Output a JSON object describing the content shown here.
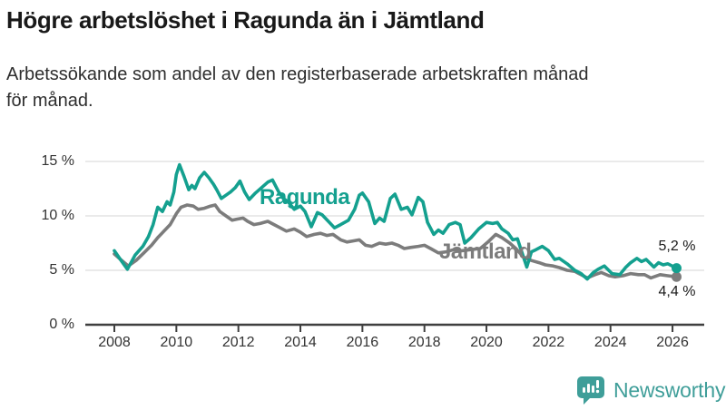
{
  "title": "Högre arbetslöshet i Ragunda än i Jämtland",
  "subtitle_lines": [
    "Arbetssökande som andel av den registerbaserade arbetskraften månad",
    "för månad."
  ],
  "colors": {
    "ragunda_teal": "#14a08f",
    "jamtland_gray": "#7c7c7c",
    "axis": "#3f3f3f",
    "gridline": "#e3e3e3",
    "tick_text": "#333333",
    "logo_teal": "#3f9e99"
  },
  "branding": {
    "logo_text": "Newsworthy"
  },
  "chart_data": {
    "type": "line",
    "title": "Högre arbetslöshet i Ragunda än i Jämtland",
    "subtitle": "Arbetssökande som andel av den registerbaserade arbetskraften månad för månad.",
    "unit": "%",
    "grid": "horizontal",
    "legend_position": "inline-labels",
    "xlim": [
      2007.9,
      2026.9
    ],
    "ylim": [
      0,
      15.5
    ],
    "x_ticks": [
      2008,
      2010,
      2012,
      2014,
      2016,
      2018,
      2020,
      2022,
      2024,
      2026
    ],
    "x_tick_labels": [
      "2008",
      "2010",
      "2012",
      "2014",
      "2016",
      "2018",
      "2020",
      "2022",
      "2024",
      "2026"
    ],
    "y_ticks": [
      {
        "value": 15,
        "label": "15 %"
      },
      {
        "value": 10,
        "label": "10 %"
      },
      {
        "value": 5,
        "label": "5 %"
      },
      {
        "value": 0,
        "label": "0 %"
      }
    ],
    "series": [
      {
        "name": "Ragunda",
        "color": "#14a08f",
        "end_label": "5,2 %",
        "end_value": 5.2,
        "points": [
          [
            2008.0,
            6.8
          ],
          [
            2008.17,
            6.1
          ],
          [
            2008.42,
            5.1
          ],
          [
            2008.67,
            6.4
          ],
          [
            2008.92,
            7.2
          ],
          [
            2009.1,
            8.1
          ],
          [
            2009.25,
            9.2
          ],
          [
            2009.4,
            10.8
          ],
          [
            2009.55,
            10.4
          ],
          [
            2009.7,
            11.3
          ],
          [
            2009.8,
            11.0
          ],
          [
            2009.92,
            12.2
          ],
          [
            2010.0,
            13.8
          ],
          [
            2010.1,
            14.7
          ],
          [
            2010.25,
            13.6
          ],
          [
            2010.4,
            12.4
          ],
          [
            2010.5,
            12.8
          ],
          [
            2010.6,
            12.5
          ],
          [
            2010.75,
            13.5
          ],
          [
            2010.9,
            14.0
          ],
          [
            2011.05,
            13.5
          ],
          [
            2011.2,
            12.9
          ],
          [
            2011.3,
            12.4
          ],
          [
            2011.45,
            11.6
          ],
          [
            2011.6,
            11.9
          ],
          [
            2011.75,
            12.2
          ],
          [
            2011.9,
            12.6
          ],
          [
            2012.05,
            13.2
          ],
          [
            2012.2,
            12.2
          ],
          [
            2012.35,
            11.5
          ],
          [
            2012.55,
            12.1
          ],
          [
            2012.75,
            12.6
          ],
          [
            2012.95,
            13.1
          ],
          [
            2013.1,
            13.3
          ],
          [
            2013.3,
            12.2
          ],
          [
            2013.45,
            11.6
          ],
          [
            2013.6,
            11.3
          ],
          [
            2013.8,
            10.6
          ],
          [
            2014.0,
            10.9
          ],
          [
            2014.15,
            10.4
          ],
          [
            2014.35,
            9.0
          ],
          [
            2014.55,
            10.3
          ],
          [
            2014.7,
            10.1
          ],
          [
            2014.9,
            9.5
          ],
          [
            2015.1,
            8.9
          ],
          [
            2015.3,
            9.2
          ],
          [
            2015.55,
            9.6
          ],
          [
            2015.75,
            10.6
          ],
          [
            2015.9,
            11.9
          ],
          [
            2016.0,
            12.1
          ],
          [
            2016.2,
            11.3
          ],
          [
            2016.4,
            9.3
          ],
          [
            2016.55,
            9.8
          ],
          [
            2016.7,
            9.5
          ],
          [
            2016.9,
            11.6
          ],
          [
            2017.05,
            12.0
          ],
          [
            2017.25,
            10.6
          ],
          [
            2017.45,
            10.8
          ],
          [
            2017.6,
            10.1
          ],
          [
            2017.8,
            11.7
          ],
          [
            2017.95,
            11.3
          ],
          [
            2018.1,
            9.4
          ],
          [
            2018.3,
            8.3
          ],
          [
            2018.45,
            8.7
          ],
          [
            2018.6,
            8.4
          ],
          [
            2018.8,
            9.2
          ],
          [
            2019.0,
            9.4
          ],
          [
            2019.15,
            9.2
          ],
          [
            2019.3,
            7.5
          ],
          [
            2019.5,
            8.0
          ],
          [
            2019.75,
            8.8
          ],
          [
            2020.0,
            9.4
          ],
          [
            2020.2,
            9.3
          ],
          [
            2020.35,
            9.4
          ],
          [
            2020.5,
            8.8
          ],
          [
            2020.7,
            8.4
          ],
          [
            2020.85,
            7.8
          ],
          [
            2021.0,
            7.9
          ],
          [
            2021.15,
            6.6
          ],
          [
            2021.3,
            5.3
          ],
          [
            2021.45,
            6.7
          ],
          [
            2021.6,
            6.9
          ],
          [
            2021.8,
            7.2
          ],
          [
            2022.0,
            6.8
          ],
          [
            2022.2,
            6.0
          ],
          [
            2022.35,
            6.1
          ],
          [
            2022.6,
            5.6
          ],
          [
            2022.85,
            5.0
          ],
          [
            2023.05,
            4.7
          ],
          [
            2023.25,
            4.2
          ],
          [
            2023.45,
            4.8
          ],
          [
            2023.6,
            5.1
          ],
          [
            2023.8,
            5.4
          ],
          [
            2024.05,
            4.7
          ],
          [
            2024.3,
            4.6
          ],
          [
            2024.5,
            5.3
          ],
          [
            2024.65,
            5.7
          ],
          [
            2024.85,
            6.1
          ],
          [
            2025.0,
            5.8
          ],
          [
            2025.15,
            6.0
          ],
          [
            2025.4,
            5.3
          ],
          [
            2025.55,
            5.7
          ],
          [
            2025.7,
            5.5
          ],
          [
            2025.85,
            5.6
          ],
          [
            2026.13,
            5.2
          ]
        ]
      },
      {
        "name": "Jämtland",
        "color": "#7c7c7c",
        "end_label": "4,4 %",
        "end_value": 4.4,
        "points": [
          [
            2008.0,
            6.5
          ],
          [
            2008.2,
            6.0
          ],
          [
            2008.45,
            5.4
          ],
          [
            2008.7,
            5.9
          ],
          [
            2008.95,
            6.6
          ],
          [
            2009.2,
            7.3
          ],
          [
            2009.4,
            8.0
          ],
          [
            2009.6,
            8.6
          ],
          [
            2009.8,
            9.2
          ],
          [
            2010.0,
            10.2
          ],
          [
            2010.15,
            10.8
          ],
          [
            2010.35,
            11.0
          ],
          [
            2010.55,
            10.9
          ],
          [
            2010.7,
            10.6
          ],
          [
            2010.9,
            10.7
          ],
          [
            2011.1,
            10.9
          ],
          [
            2011.25,
            11.0
          ],
          [
            2011.4,
            10.4
          ],
          [
            2011.6,
            10.0
          ],
          [
            2011.8,
            9.6
          ],
          [
            2011.95,
            9.7
          ],
          [
            2012.15,
            9.8
          ],
          [
            2012.3,
            9.5
          ],
          [
            2012.5,
            9.2
          ],
          [
            2012.7,
            9.3
          ],
          [
            2012.95,
            9.5
          ],
          [
            2013.15,
            9.2
          ],
          [
            2013.35,
            8.9
          ],
          [
            2013.55,
            8.6
          ],
          [
            2013.8,
            8.8
          ],
          [
            2014.0,
            8.5
          ],
          [
            2014.2,
            8.1
          ],
          [
            2014.45,
            8.3
          ],
          [
            2014.65,
            8.4
          ],
          [
            2014.85,
            8.2
          ],
          [
            2015.05,
            8.3
          ],
          [
            2015.3,
            7.8
          ],
          [
            2015.5,
            7.6
          ],
          [
            2015.7,
            7.7
          ],
          [
            2015.9,
            7.8
          ],
          [
            2016.1,
            7.3
          ],
          [
            2016.3,
            7.2
          ],
          [
            2016.55,
            7.5
          ],
          [
            2016.75,
            7.4
          ],
          [
            2016.95,
            7.5
          ],
          [
            2017.15,
            7.3
          ],
          [
            2017.35,
            7.0
          ],
          [
            2017.55,
            7.1
          ],
          [
            2017.8,
            7.2
          ],
          [
            2018.0,
            7.3
          ],
          [
            2018.2,
            7.0
          ],
          [
            2018.45,
            6.6
          ],
          [
            2018.7,
            6.7
          ],
          [
            2018.95,
            6.9
          ],
          [
            2019.2,
            6.8
          ],
          [
            2019.5,
            6.9
          ],
          [
            2019.8,
            7.0
          ],
          [
            2020.05,
            7.6
          ],
          [
            2020.3,
            8.3
          ],
          [
            2020.5,
            8.0
          ],
          [
            2020.75,
            7.5
          ],
          [
            2020.95,
            7.0
          ],
          [
            2021.2,
            6.2
          ],
          [
            2021.45,
            5.9
          ],
          [
            2021.7,
            5.7
          ],
          [
            2021.9,
            5.5
          ],
          [
            2022.15,
            5.4
          ],
          [
            2022.35,
            5.25
          ],
          [
            2022.6,
            5.0
          ],
          [
            2022.85,
            4.9
          ],
          [
            2023.05,
            4.6
          ],
          [
            2023.25,
            4.3
          ],
          [
            2023.5,
            4.6
          ],
          [
            2023.7,
            4.8
          ],
          [
            2023.95,
            4.5
          ],
          [
            2024.15,
            4.4
          ],
          [
            2024.4,
            4.5
          ],
          [
            2024.65,
            4.7
          ],
          [
            2024.9,
            4.6
          ],
          [
            2025.1,
            4.6
          ],
          [
            2025.3,
            4.3
          ],
          [
            2025.6,
            4.6
          ],
          [
            2025.85,
            4.5
          ],
          [
            2026.13,
            4.4
          ]
        ]
      }
    ]
  }
}
